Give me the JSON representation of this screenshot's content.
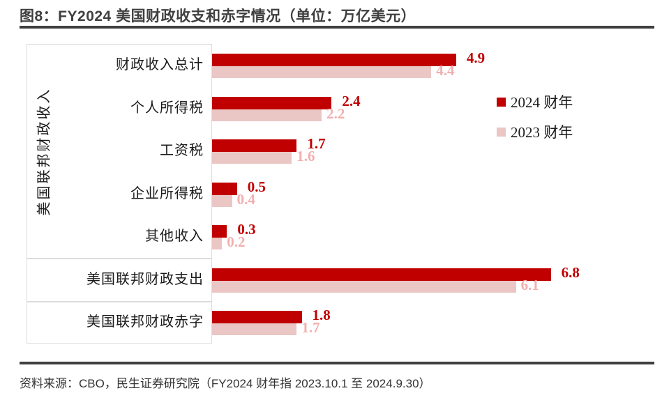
{
  "header": {
    "title": "图8：FY2024 美国财政收支和赤字情况（单位：万亿美元）"
  },
  "footer": {
    "source": "资料来源：CBO，民生证券研究院（FY2024 财年指 2023.10.1 至 2024.9.30）"
  },
  "colors": {
    "fy2024": "#C00000",
    "fy2023": "#EAC6C4",
    "fy2023_label": "#F2AFAF",
    "title_text": "#3F3F3F",
    "rule": "#3F3F3F",
    "box_border": "#DCDCDC"
  },
  "chart_data": {
    "type": "bar",
    "orientation": "horizontal",
    "title": "FY2024 美国财政收支和赤字情况",
    "unit": "万亿美元",
    "group_label": "美国联邦财政收入",
    "group_span_categories": 5,
    "categories": [
      "财政收入总计",
      "个人所得税",
      "工资税",
      "企业所得税",
      "其他收入",
      "美国联邦财政支出",
      "美国联邦财政赤字"
    ],
    "series": [
      {
        "name": "2024 财年",
        "color": "#C00000",
        "values": [
          4.9,
          2.4,
          1.7,
          0.5,
          0.3,
          6.8,
          1.8
        ]
      },
      {
        "name": "2023 财年",
        "color": "#EAC6C4",
        "values": [
          4.4,
          2.2,
          1.6,
          0.4,
          0.2,
          6.1,
          1.7
        ]
      }
    ],
    "xlim": [
      0,
      8.85
    ],
    "grid": false,
    "value_labels": true,
    "legend_position": "right"
  }
}
